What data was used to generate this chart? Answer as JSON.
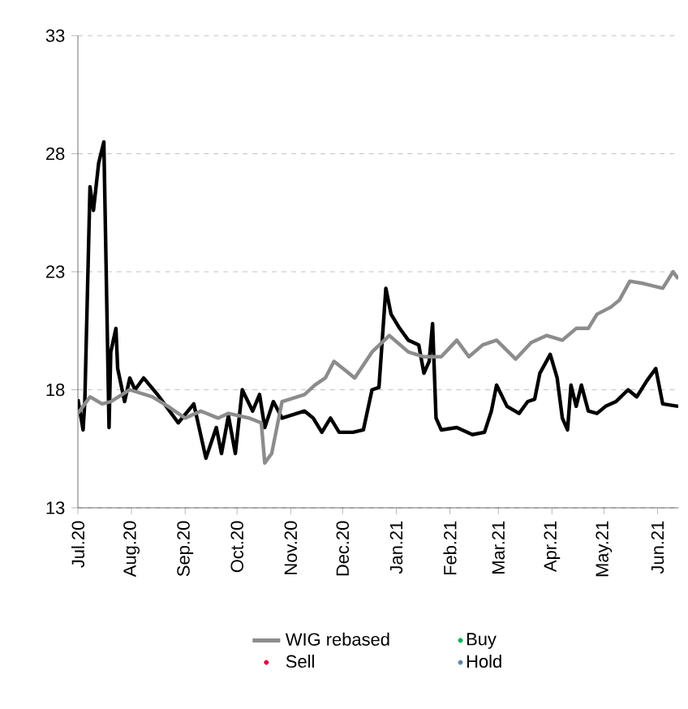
{
  "chart_data": {
    "type": "line",
    "xlim": [
      "2020-07-01",
      "2021-06-13"
    ],
    "ylim": [
      13,
      33
    ],
    "xticks": [
      {
        "value": "2020-07-01",
        "label": "Jul.20"
      },
      {
        "value": "2020-08-01",
        "label": "Aug.20"
      },
      {
        "value": "2020-09-01",
        "label": "Sep.20"
      },
      {
        "value": "2020-10-01",
        "label": "Oct.20"
      },
      {
        "value": "2020-11-01",
        "label": "Nov.20"
      },
      {
        "value": "2020-12-01",
        "label": "Dec.20"
      },
      {
        "value": "2021-01-01",
        "label": "Jan.21"
      },
      {
        "value": "2021-02-01",
        "label": "Feb.21"
      },
      {
        "value": "2021-03-01",
        "label": "Mar.21"
      },
      {
        "value": "2021-04-01",
        "label": "Apr.21"
      },
      {
        "value": "2021-05-01",
        "label": "May.21"
      },
      {
        "value": "2021-06-01",
        "label": "Jun.21"
      }
    ],
    "yticks": [
      13,
      18,
      23,
      28,
      33
    ],
    "grid": "y",
    "legend": "bottom",
    "series": [
      {
        "color": "#000000",
        "marker": "none",
        "x": [
          "2020-07-01",
          "2020-07-04",
          "2020-07-05",
          "2020-07-08",
          "2020-07-10",
          "2020-07-13",
          "2020-07-16",
          "2020-07-19",
          "2020-07-20",
          "2020-07-23",
          "2020-07-24",
          "2020-07-28",
          "2020-07-31",
          "2020-08-03",
          "2020-08-08",
          "2020-08-16",
          "2020-08-28",
          "2020-09-06",
          "2020-09-13",
          "2020-09-19",
          "2020-09-22",
          "2020-09-26",
          "2020-09-30",
          "2020-10-04",
          "2020-10-10",
          "2020-10-14",
          "2020-10-17",
          "2020-10-22",
          "2020-10-27",
          "2020-11-09",
          "2020-11-14",
          "2020-11-19",
          "2020-11-24",
          "2020-11-29",
          "2020-12-07",
          "2020-12-13",
          "2020-12-18",
          "2020-12-22",
          "2020-12-26",
          "2020-12-29",
          "2021-01-03",
          "2021-01-08",
          "2021-01-14",
          "2021-01-17",
          "2021-01-20",
          "2021-01-22",
          "2021-01-24",
          "2021-01-27",
          "2021-02-05",
          "2021-02-14",
          "2021-02-21",
          "2021-02-25",
          "2021-02-28",
          "2021-03-06",
          "2021-03-13",
          "2021-03-18",
          "2021-03-22",
          "2021-03-25",
          "2021-03-31",
          "2021-04-04",
          "2021-04-07",
          "2021-04-10",
          "2021-04-12",
          "2021-04-15",
          "2021-04-18",
          "2021-04-22",
          "2021-04-27",
          "2021-05-02",
          "2021-05-08",
          "2021-05-15",
          "2021-05-20",
          "2021-05-26",
          "2021-05-31",
          "2021-06-04",
          "2021-06-13"
        ],
        "values": [
          17.6,
          16.3,
          17.5,
          26.6,
          25.6,
          27.6,
          28.5,
          16.4,
          19.6,
          20.6,
          18.9,
          17.5,
          18.5,
          18.0,
          18.5,
          17.8,
          16.6,
          17.4,
          15.1,
          16.4,
          15.3,
          16.9,
          15.3,
          18.0,
          17.1,
          17.8,
          16.4,
          17.5,
          16.8,
          17.1,
          16.8,
          16.2,
          16.8,
          16.2,
          16.2,
          16.3,
          18.0,
          18.1,
          22.3,
          21.2,
          20.6,
          20.1,
          19.9,
          18.7,
          19.2,
          20.8,
          16.8,
          16.3,
          16.4,
          16.1,
          16.2,
          17.1,
          18.2,
          17.3,
          17.0,
          17.5,
          17.6,
          18.7,
          19.5,
          18.5,
          16.8,
          16.3,
          18.2,
          17.3,
          18.2,
          17.1,
          17.0,
          17.3,
          17.5,
          18.0,
          17.7,
          18.4,
          18.9,
          17.4,
          17.3
        ]
      },
      {
        "name": "WIG rebased",
        "color": "#8c8c8c",
        "marker": "none",
        "x": [
          "2020-07-01",
          "2020-07-08",
          "2020-07-15",
          "2020-07-20",
          "2020-07-31",
          "2020-08-13",
          "2020-08-22",
          "2020-09-01",
          "2020-09-10",
          "2020-09-20",
          "2020-09-26",
          "2020-10-08",
          "2020-10-15",
          "2020-10-17",
          "2020-10-21",
          "2020-10-27",
          "2020-11-09",
          "2020-11-15",
          "2020-11-21",
          "2020-11-26",
          "2020-12-03",
          "2020-12-08",
          "2020-12-18",
          "2020-12-28",
          "2021-01-08",
          "2021-01-17",
          "2021-01-27",
          "2021-02-05",
          "2021-02-12",
          "2021-02-20",
          "2021-02-28",
          "2021-03-11",
          "2021-03-20",
          "2021-03-29",
          "2021-04-07",
          "2021-04-15",
          "2021-04-22",
          "2021-04-27",
          "2021-05-05",
          "2021-05-10",
          "2021-05-16",
          "2021-05-24",
          "2021-06-04",
          "2021-06-10",
          "2021-06-13"
        ],
        "values": [
          17.0,
          17.7,
          17.4,
          17.5,
          18.0,
          17.7,
          17.3,
          16.8,
          17.1,
          16.8,
          17.0,
          16.8,
          16.6,
          14.9,
          15.3,
          17.5,
          17.8,
          18.2,
          18.5,
          19.2,
          18.8,
          18.5,
          19.6,
          20.3,
          19.6,
          19.4,
          19.4,
          20.1,
          19.4,
          19.9,
          20.1,
          19.3,
          20.0,
          20.3,
          20.1,
          20.6,
          20.6,
          21.2,
          21.5,
          21.8,
          22.6,
          22.5,
          22.3,
          23.0,
          22.7
        ]
      },
      {
        "name": "Buy",
        "type": "scatter",
        "color": "#00b050",
        "marker": "circle"
      },
      {
        "name": "Sell",
        "type": "scatter",
        "color": "#e4003a",
        "marker": "circle"
      },
      {
        "name": "Hold",
        "type": "scatter",
        "color": "#5b87a8",
        "marker": "circle"
      }
    ]
  }
}
